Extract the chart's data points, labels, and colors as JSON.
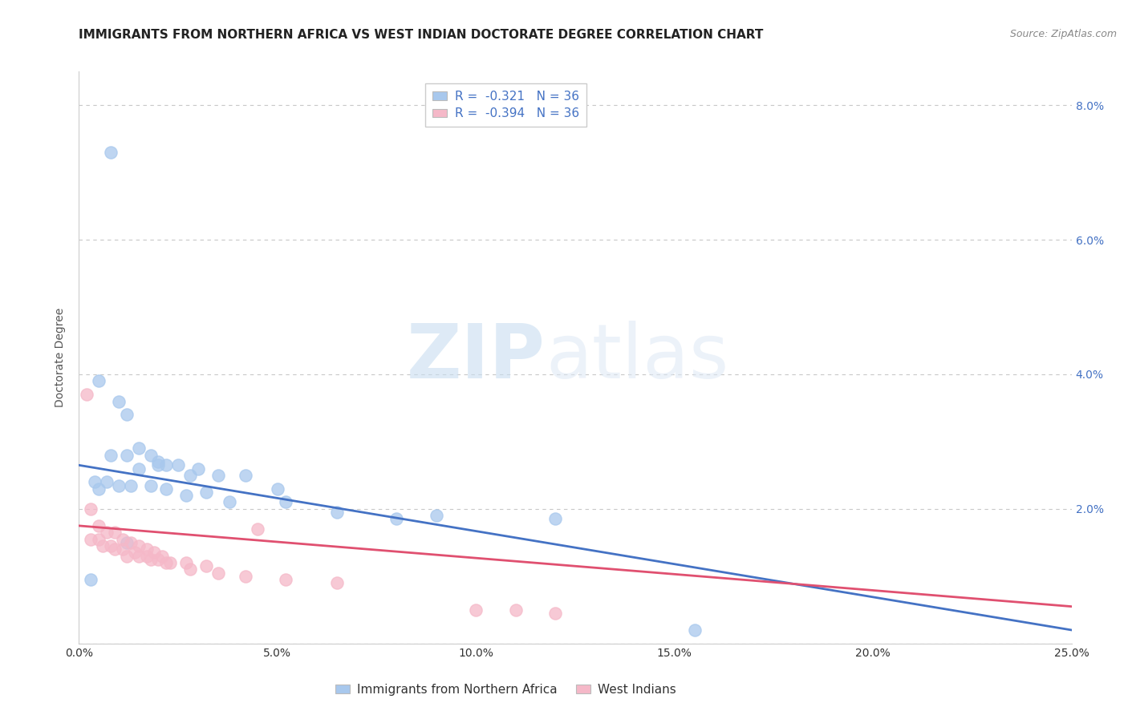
{
  "title": "IMMIGRANTS FROM NORTHERN AFRICA VS WEST INDIAN DOCTORATE DEGREE CORRELATION CHART",
  "source": "Source: ZipAtlas.com",
  "ylabel_label": "Doctorate Degree",
  "xlim": [
    0.0,
    0.25
  ],
  "ylim": [
    0.0,
    0.085
  ],
  "xticks": [
    0.0,
    0.05,
    0.1,
    0.15,
    0.2,
    0.25
  ],
  "xticklabels": [
    "0.0%",
    "5.0%",
    "10.0%",
    "15.0%",
    "20.0%",
    "25.0%"
  ],
  "yticks": [
    0.0,
    0.02,
    0.04,
    0.06,
    0.08
  ],
  "yticklabels": [
    "",
    "2.0%",
    "4.0%",
    "6.0%",
    "8.0%"
  ],
  "color_blue": "#a8c8ed",
  "color_pink": "#f5b8c8",
  "color_line_blue": "#4472c4",
  "color_line_pink": "#e05070",
  "legend_label1": "R =  -0.321   N = 36",
  "legend_label2": "R =  -0.394   N = 36",
  "legend_label_blue": "Immigrants from Northern Africa",
  "legend_label_pink": "West Indians",
  "watermark_zip": "ZIP",
  "watermark_atlas": "atlas",
  "title_fontsize": 11,
  "axis_label_fontsize": 10,
  "tick_fontsize": 10,
  "blue_scatter_x": [
    0.008,
    0.005,
    0.01,
    0.012,
    0.008,
    0.015,
    0.018,
    0.02,
    0.022,
    0.012,
    0.015,
    0.02,
    0.025,
    0.028,
    0.03,
    0.035,
    0.042,
    0.05,
    0.004,
    0.007,
    0.01,
    0.013,
    0.018,
    0.022,
    0.027,
    0.032,
    0.038,
    0.052,
    0.065,
    0.08,
    0.12,
    0.155,
    0.003,
    0.012,
    0.005,
    0.09
  ],
  "blue_scatter_y": [
    0.073,
    0.039,
    0.036,
    0.034,
    0.028,
    0.029,
    0.028,
    0.027,
    0.0265,
    0.028,
    0.026,
    0.0265,
    0.0265,
    0.025,
    0.026,
    0.025,
    0.025,
    0.023,
    0.024,
    0.024,
    0.0235,
    0.0235,
    0.0235,
    0.023,
    0.022,
    0.0225,
    0.021,
    0.021,
    0.0195,
    0.0185,
    0.0185,
    0.002,
    0.0095,
    0.015,
    0.023,
    0.019
  ],
  "pink_scatter_x": [
    0.003,
    0.005,
    0.007,
    0.009,
    0.011,
    0.013,
    0.015,
    0.017,
    0.019,
    0.021,
    0.005,
    0.008,
    0.011,
    0.014,
    0.017,
    0.02,
    0.023,
    0.027,
    0.032,
    0.003,
    0.006,
    0.009,
    0.012,
    0.015,
    0.018,
    0.022,
    0.028,
    0.035,
    0.042,
    0.052,
    0.065,
    0.1,
    0.11,
    0.12,
    0.002,
    0.045
  ],
  "pink_scatter_y": [
    0.02,
    0.0175,
    0.0165,
    0.0165,
    0.0155,
    0.015,
    0.0145,
    0.014,
    0.0135,
    0.013,
    0.0155,
    0.0145,
    0.014,
    0.0135,
    0.013,
    0.0125,
    0.012,
    0.012,
    0.0115,
    0.0155,
    0.0145,
    0.014,
    0.013,
    0.013,
    0.0125,
    0.012,
    0.011,
    0.0105,
    0.01,
    0.0095,
    0.009,
    0.005,
    0.005,
    0.0045,
    0.037,
    0.017
  ],
  "blue_line_x": [
    0.0,
    0.25
  ],
  "blue_line_y": [
    0.0265,
    0.002
  ],
  "pink_line_x": [
    0.0,
    0.25
  ],
  "pink_line_y": [
    0.0175,
    0.0055
  ],
  "background_color": "#ffffff",
  "grid_color": "#c8c8c8",
  "right_tick_color": "#4472c4",
  "legend_text_color": "#4472c4"
}
